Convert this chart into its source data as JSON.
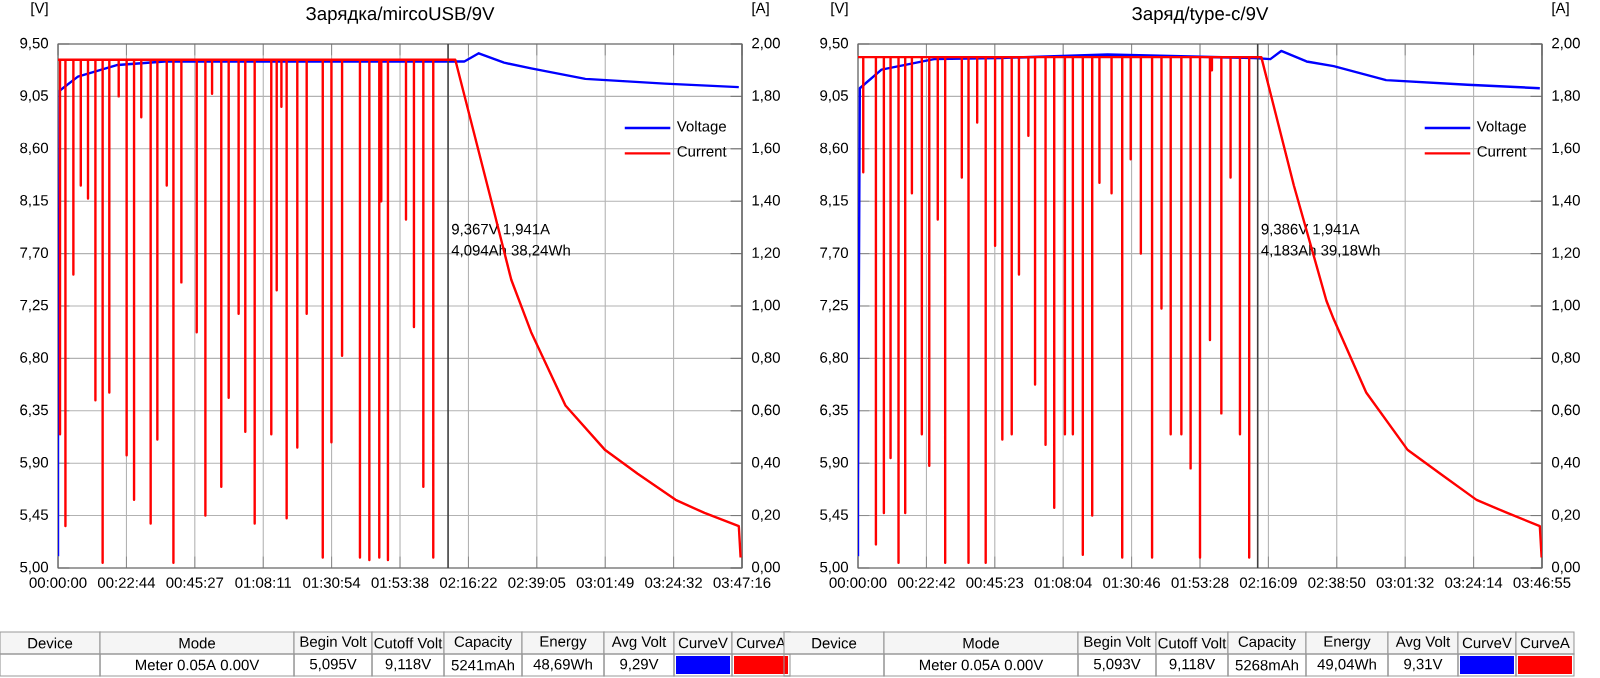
{
  "chart_data": [
    {
      "type": "line",
      "title": "Зарядка/mircoUSB/9V",
      "ylabel": "[V]",
      "y2label": "[A]",
      "grid": true,
      "legend": "top right",
      "xlim": [
        0,
        3.78778
      ],
      "xticks": [
        {
          "value": 0,
          "label": "00:00:00"
        },
        {
          "value": 0.37889,
          "label": "00:22:44"
        },
        {
          "value": 0.7575,
          "label": "00:45:27"
        },
        {
          "value": 1.13639,
          "label": "01:08:11"
        },
        {
          "value": 1.515,
          "label": "01:30:54"
        },
        {
          "value": 1.89389,
          "label": "01:53:38"
        },
        {
          "value": 2.27278,
          "label": "02:16:22"
        },
        {
          "value": 2.65139,
          "label": "02:39:05"
        },
        {
          "value": 3.03028,
          "label": "03:01:49"
        },
        {
          "value": 3.40889,
          "label": "03:24:32"
        },
        {
          "value": 3.78778,
          "label": "03:47:16"
        }
      ],
      "ylim": [
        5,
        9.5
      ],
      "yticks": [
        {
          "value": 5,
          "label": "5,00"
        },
        {
          "value": 5.45,
          "label": "5,45"
        },
        {
          "value": 5.9,
          "label": "5,90"
        },
        {
          "value": 6.35,
          "label": "6,35"
        },
        {
          "value": 6.8,
          "label": "6,80"
        },
        {
          "value": 7.25,
          "label": "7,25"
        },
        {
          "value": 7.7,
          "label": "7,70"
        },
        {
          "value": 8.15,
          "label": "8,15"
        },
        {
          "value": 8.6,
          "label": "8,60"
        },
        {
          "value": 9.05,
          "label": "9,05"
        },
        {
          "value": 9.5,
          "label": "9,50"
        }
      ],
      "y2lim": [
        0,
        2
      ],
      "y2ticks": [
        {
          "value": 0,
          "label": "0,00"
        },
        {
          "value": 0.2,
          "label": "0,20"
        },
        {
          "value": 0.4,
          "label": "0,40"
        },
        {
          "value": 0.6,
          "label": "0,60"
        },
        {
          "value": 0.8,
          "label": "0,80"
        },
        {
          "value": 1,
          "label": "1,00"
        },
        {
          "value": 1.2,
          "label": "1,20"
        },
        {
          "value": 1.4,
          "label": "1,40"
        },
        {
          "value": 1.6,
          "label": "1,60"
        },
        {
          "value": 1.8,
          "label": "1,80"
        },
        {
          "value": 2,
          "label": "2,00"
        }
      ],
      "series": [
        {
          "name": "Voltage",
          "color": "#0000ff",
          "x": [
            0,
            0,
            0.01,
            0.11,
            0.33,
            0.59,
            2.18,
            2.25,
            2.33,
            2.47,
            2.62,
            2.92,
            3.36,
            3.77
          ],
          "values": [
            5.1,
            6.1,
            9.1,
            9.22,
            9.32,
            9.35,
            9.35,
            9.35,
            9.42,
            9.34,
            9.29,
            9.2,
            9.16,
            9.13
          ]
        },
        {
          "name": "Current",
          "color": "#ff0000",
          "axis": "y2",
          "x": [
            0,
            0.011,
            0.011,
            0.011,
            0.041,
            0.041,
            0.041,
            0.085,
            0.085,
            0.085,
            0.126,
            0.126,
            0.126,
            0.166,
            0.166,
            0.166,
            0.207,
            0.207,
            0.207,
            0.247,
            0.247,
            0.247,
            0.284,
            0.284,
            0.284,
            0.336,
            0.336,
            0.336,
            0.38,
            0.38,
            0.38,
            0.421,
            0.421,
            0.421,
            0.461,
            0.461,
            0.461,
            0.513,
            0.513,
            0.513,
            0.55,
            0.55,
            0.55,
            0.602,
            0.602,
            0.602,
            0.639,
            0.639,
            0.639,
            0.683,
            0.683,
            0.683,
            0.768,
            0.768,
            0.768,
            0.816,
            0.816,
            0.816,
            0.853,
            0.853,
            0.853,
            0.904,
            0.904,
            0.904,
            0.945,
            0.945,
            0.945,
            1.0,
            1.0,
            1.0,
            1.037,
            1.037,
            1.037,
            1.089,
            1.089,
            1.089,
            1.181,
            1.181,
            1.181,
            1.211,
            1.211,
            1.211,
            1.237,
            1.237,
            1.237,
            1.266,
            1.266,
            1.266,
            1.325,
            1.325,
            1.325,
            1.377,
            1.377,
            1.377,
            1.466,
            1.466,
            1.466,
            1.514,
            1.514,
            1.514,
            1.573,
            1.573,
            1.573,
            1.672,
            1.672,
            1.672,
            1.724,
            1.724,
            1.724,
            1.779,
            1.779,
            1.779,
            1.79,
            1.79,
            1.79,
            1.827,
            1.827,
            1.827,
            1.927,
            1.927,
            1.927,
            1.971,
            1.971,
            1.971,
            2.023,
            2.023,
            2.023,
            2.078,
            2.078,
            2.078,
            2.2,
            2.4,
            2.51,
            2.62,
            2.81,
            3.03,
            3.21,
            3.42,
            3.58,
            3.77,
            3.78
          ],
          "values": [
            1.94,
            1.94,
            0.51,
            1.94,
            1.94,
            0.16,
            1.94,
            1.94,
            1.12,
            1.94,
            1.94,
            1.46,
            1.94,
            1.94,
            1.41,
            1.94,
            1.94,
            0.64,
            1.94,
            1.94,
            0.02,
            1.94,
            1.94,
            0.67,
            1.94,
            1.94,
            1.8,
            1.94,
            1.94,
            0.43,
            1.94,
            1.94,
            0.26,
            1.94,
            1.94,
            1.72,
            1.94,
            1.94,
            0.17,
            1.94,
            1.94,
            0.49,
            1.94,
            1.94,
            1.46,
            1.94,
            1.94,
            0.02,
            1.94,
            1.94,
            1.09,
            1.94,
            1.94,
            0.9,
            1.94,
            1.94,
            0.2,
            1.94,
            1.94,
            1.81,
            1.94,
            1.94,
            0.31,
            1.94,
            1.94,
            0.65,
            1.94,
            1.94,
            0.97,
            1.94,
            1.94,
            0.52,
            1.94,
            1.94,
            0.17,
            1.94,
            1.94,
            0.51,
            1.94,
            1.94,
            1.06,
            1.94,
            1.94,
            1.76,
            1.94,
            1.94,
            0.19,
            1.94,
            1.94,
            0.46,
            1.94,
            1.94,
            0.97,
            1.94,
            1.94,
            0.04,
            1.94,
            1.94,
            0.48,
            1.94,
            1.94,
            0.81,
            1.94,
            1.94,
            0.04,
            1.94,
            1.94,
            0.03,
            1.94,
            1.94,
            0.04,
            1.94,
            1.94,
            1.4,
            1.94,
            1.94,
            0.03,
            1.94,
            1.94,
            1.33,
            1.94,
            1.94,
            0.92,
            1.94,
            1.94,
            0.31,
            1.94,
            1.94,
            0.04,
            1.94,
            1.94,
            1.4,
            1.1,
            0.9,
            0.62,
            0.45,
            0.36,
            0.26,
            0.21,
            0.16,
            0.04
          ]
        }
      ],
      "ref_lines": [
        {
          "axis": "x",
          "value": 2.16,
          "color": "#404040"
        }
      ],
      "annotations": [
        "9,367V  1,941A",
        "4,094Ah 38,24Wh",
        "Device",
        "Mode",
        "Begin Volt",
        "Cutoff Volt",
        "Capacity",
        "Energy",
        "Avg Volt",
        "CurveV",
        "CurveA",
        "Meter  0.05A  0.00V",
        "5,095V",
        "9,118V",
        "5241mAh",
        "48,69Wh",
        "9,29V"
      ]
    },
    {
      "type": "line",
      "title": "Заряд/type-c/9V",
      "ylabel": "[V]",
      "y2label": "[A]",
      "grid": true,
      "legend": "top right",
      "xlim": [
        0,
        3.78194
      ],
      "xticks": [
        {
          "value": 0,
          "label": "00:00:00"
        },
        {
          "value": 0.37833,
          "label": "00:22:42"
        },
        {
          "value": 0.75639,
          "label": "00:45:23"
        },
        {
          "value": 1.13444,
          "label": "01:08:04"
        },
        {
          "value": 1.51278,
          "label": "01:30:46"
        },
        {
          "value": 1.89111,
          "label": "01:53:28"
        },
        {
          "value": 2.26917,
          "label": "02:16:09"
        },
        {
          "value": 2.64722,
          "label": "02:38:50"
        },
        {
          "value": 3.02556,
          "label": "03:01:32"
        },
        {
          "value": 3.40389,
          "label": "03:24:14"
        },
        {
          "value": 3.78194,
          "label": "03:46:55"
        }
      ],
      "ylim": [
        5,
        9.5
      ],
      "yticks": [
        {
          "value": 5,
          "label": "5,00"
        },
        {
          "value": 5.45,
          "label": "5,45"
        },
        {
          "value": 5.9,
          "label": "5,90"
        },
        {
          "value": 6.35,
          "label": "6,35"
        },
        {
          "value": 6.8,
          "label": "6,80"
        },
        {
          "value": 7.25,
          "label": "7,25"
        },
        {
          "value": 7.7,
          "label": "7,70"
        },
        {
          "value": 8.15,
          "label": "8,15"
        },
        {
          "value": 8.6,
          "label": "8,60"
        },
        {
          "value": 9.05,
          "label": "9,05"
        },
        {
          "value": 9.5,
          "label": "9,50"
        }
      ],
      "y2lim": [
        0,
        2
      ],
      "y2ticks": [
        {
          "value": 0,
          "label": "0,00"
        },
        {
          "value": 0.2,
          "label": "0,20"
        },
        {
          "value": 0.4,
          "label": "0,40"
        },
        {
          "value": 0.6,
          "label": "0,60"
        },
        {
          "value": 0.8,
          "label": "0,80"
        },
        {
          "value": 1,
          "label": "1,00"
        },
        {
          "value": 1.2,
          "label": "1,20"
        },
        {
          "value": 1.4,
          "label": "1,40"
        },
        {
          "value": 1.6,
          "label": "1,60"
        },
        {
          "value": 1.8,
          "label": "1,80"
        },
        {
          "value": 2,
          "label": "2,00"
        }
      ],
      "series": [
        {
          "name": "Voltage",
          "color": "#0000ff",
          "x": [
            0,
            0,
            0.01,
            0.13,
            0.42,
            0.79,
            1.38,
            2.19,
            2.28,
            2.34,
            2.48,
            2.63,
            2.92,
            3.37,
            3.77
          ],
          "values": [
            5.1,
            5.7,
            9.12,
            9.28,
            9.37,
            9.38,
            9.41,
            9.38,
            9.37,
            9.44,
            9.35,
            9.31,
            9.19,
            9.15,
            9.12
          ]
        },
        {
          "name": "Current",
          "color": "#ff0000",
          "axis": "y2",
          "x": [
            0,
            0.029,
            0.029,
            0.029,
            0.099,
            0.099,
            0.099,
            0.143,
            0.143,
            0.143,
            0.18,
            0.18,
            0.18,
            0.224,
            0.224,
            0.224,
            0.261,
            0.261,
            0.261,
            0.298,
            0.298,
            0.298,
            0.353,
            0.353,
            0.353,
            0.394,
            0.394,
            0.394,
            0.441,
            0.441,
            0.441,
            0.482,
            0.482,
            0.482,
            0.574,
            0.574,
            0.574,
            0.611,
            0.611,
            0.611,
            0.659,
            0.659,
            0.659,
            0.706,
            0.706,
            0.706,
            0.758,
            0.758,
            0.758,
            0.798,
            0.798,
            0.798,
            0.85,
            0.85,
            0.85,
            0.89,
            0.89,
            0.89,
            0.942,
            0.942,
            0.942,
            0.979,
            0.979,
            0.979,
            1.037,
            1.037,
            1.037,
            1.085,
            1.085,
            1.085,
            1.144,
            1.144,
            1.144,
            1.188,
            1.188,
            1.188,
            1.243,
            1.243,
            1.243,
            1.295,
            1.295,
            1.295,
            1.335,
            1.335,
            1.335,
            1.402,
            1.402,
            1.402,
            1.461,
            1.461,
            1.461,
            1.508,
            1.508,
            1.508,
            1.564,
            1.564,
            1.564,
            1.626,
            1.626,
            1.626,
            1.678,
            1.678,
            1.678,
            1.729,
            1.729,
            1.729,
            1.788,
            1.788,
            1.788,
            1.839,
            1.839,
            1.839,
            1.891,
            1.891,
            1.891,
            1.946,
            1.946,
            1.946,
            1.957,
            1.957,
            1.957,
            2.009,
            2.009,
            2.009,
            2.06,
            2.06,
            2.06,
            2.112,
            2.112,
            2.112,
            2.163,
            2.163,
            2.163,
            2.23,
            2.41,
            2.59,
            2.63,
            2.81,
            3.04,
            3.22,
            3.42,
            3.59,
            3.77,
            3.78
          ],
          "values": [
            1.95,
            1.95,
            1.51,
            1.95,
            1.95,
            0.09,
            1.95,
            1.95,
            0.21,
            1.95,
            1.95,
            0.42,
            1.95,
            1.95,
            0.02,
            1.95,
            1.95,
            0.21,
            1.95,
            1.95,
            1.43,
            1.95,
            1.95,
            0.51,
            1.95,
            1.95,
            0.39,
            1.95,
            1.95,
            1.33,
            1.95,
            1.95,
            0.02,
            1.95,
            1.95,
            1.49,
            1.95,
            1.95,
            0.02,
            1.95,
            1.95,
            1.7,
            1.95,
            1.95,
            0.02,
            1.95,
            1.95,
            1.23,
            1.95,
            1.95,
            0.49,
            1.95,
            1.95,
            0.51,
            1.95,
            1.95,
            1.12,
            1.95,
            1.95,
            1.65,
            1.95,
            1.95,
            0.7,
            1.95,
            1.95,
            0.47,
            1.95,
            1.95,
            0.23,
            1.95,
            1.95,
            0.51,
            1.95,
            1.95,
            0.51,
            1.95,
            1.95,
            0.05,
            1.95,
            1.95,
            0.2,
            1.95,
            1.95,
            1.47,
            1.95,
            1.95,
            1.43,
            1.95,
            1.95,
            0.04,
            1.95,
            1.95,
            1.56,
            1.95,
            1.95,
            1.2,
            1.95,
            1.95,
            0.04,
            1.95,
            1.95,
            0.99,
            1.95,
            1.95,
            0.51,
            1.95,
            1.95,
            0.51,
            1.95,
            1.95,
            0.38,
            1.95,
            1.95,
            0.04,
            1.95,
            1.95,
            0.87,
            1.95,
            1.95,
            1.9,
            1.95,
            1.95,
            0.59,
            1.95,
            1.95,
            1.49,
            1.95,
            1.95,
            0.51,
            1.95,
            1.95,
            0.04,
            1.95,
            1.95,
            1.46,
            1.02,
            0.95,
            0.67,
            0.45,
            0.36,
            0.26,
            0.21,
            0.16,
            0.04
          ]
        }
      ],
      "ref_lines": [
        {
          "axis": "x",
          "value": 2.21,
          "color": "#404040"
        }
      ],
      "annotations": [
        "9,386V  1,941A",
        "4,183Ah 39,18Wh",
        "Device",
        "Mode",
        "Begin Volt",
        "Cutoff Volt",
        "Capacity",
        "Energy",
        "Avg Volt",
        "CurveV",
        "CurveA",
        "Meter  0.05A  0.00V",
        "5,093V",
        "9,118V",
        "5268mAh",
        "49,04Wh",
        "9,31V"
      ]
    }
  ]
}
